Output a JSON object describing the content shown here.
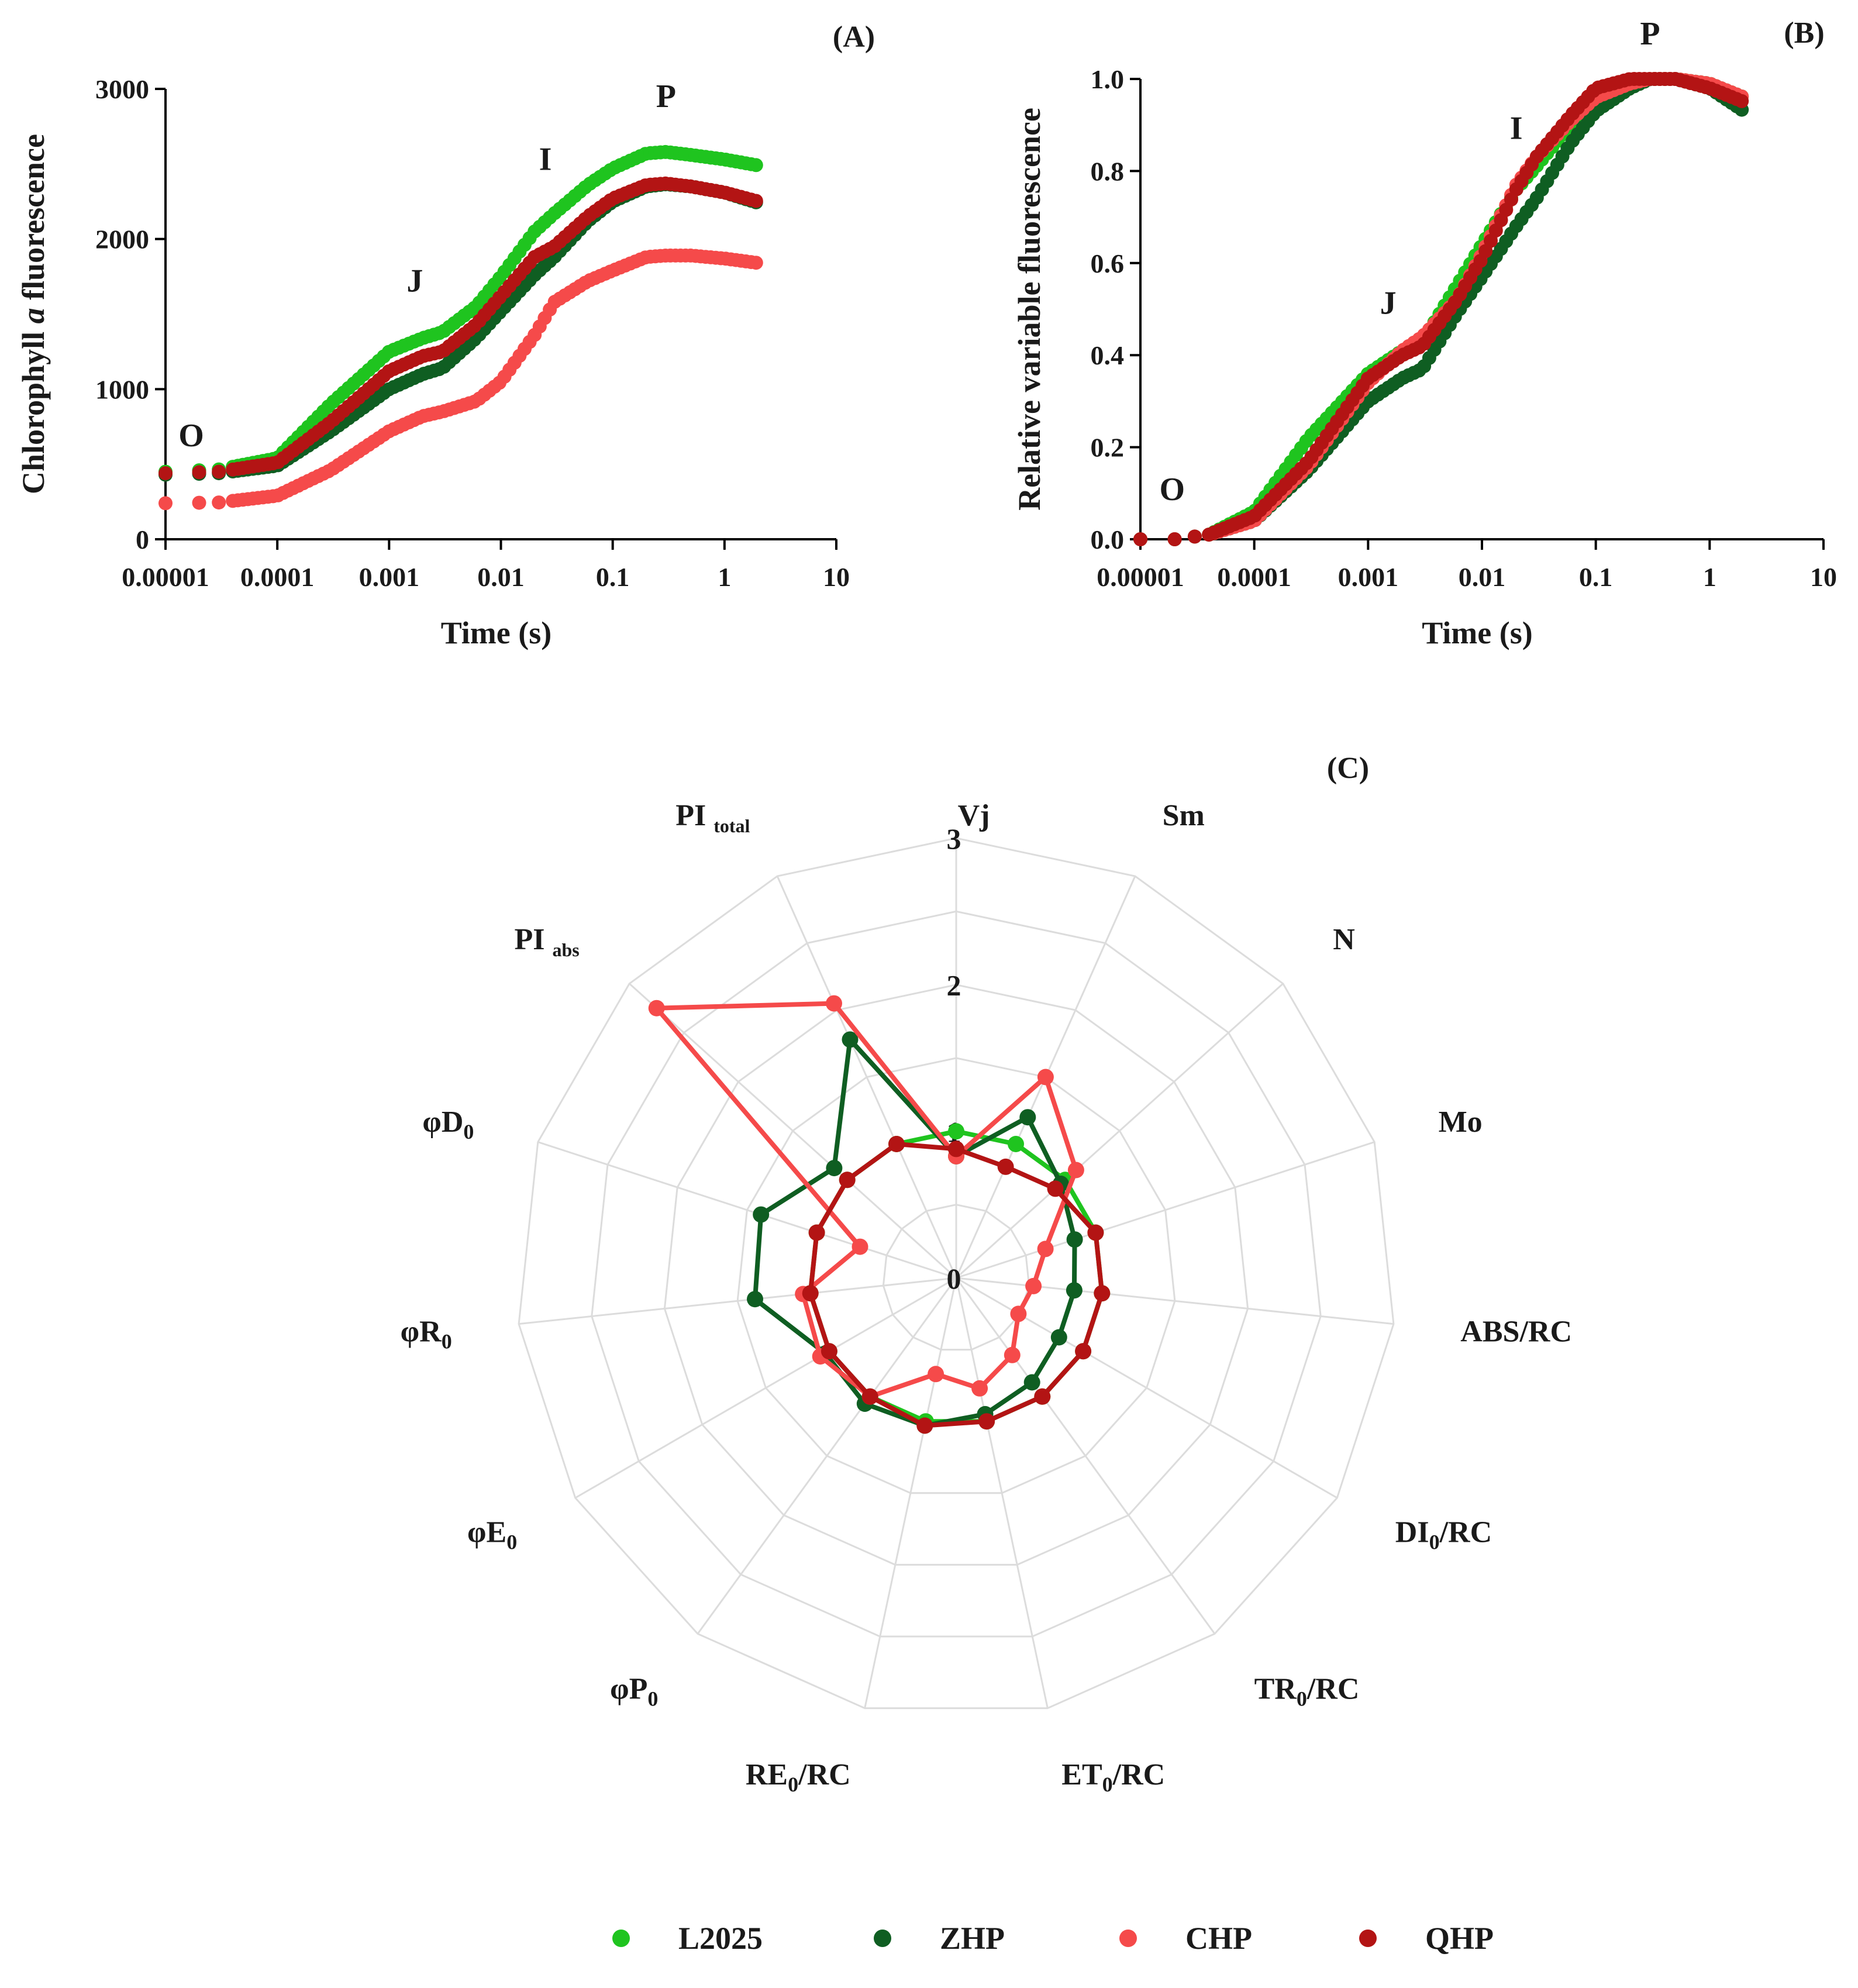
{
  "series": [
    {
      "key": "L2025",
      "name": "L2025",
      "color": "#1fc41f"
    },
    {
      "key": "ZHP",
      "name": "ZHP",
      "color": "#0f5e22"
    },
    {
      "key": "CHP",
      "name": "CHP",
      "color": "#f54a4a"
    },
    {
      "key": "QHP",
      "name": "QHP",
      "color": "#b31414"
    }
  ],
  "chart_data": [
    {
      "id": "A",
      "type": "scatter",
      "panel_label": "(A)",
      "xlabel": "Time (s)",
      "ylabel": {
        "pre": "Chlorophyll ",
        "italic": "a",
        "post": " fluorescence"
      },
      "xscale": "log",
      "xlim": [
        1e-05,
        10
      ],
      "ylim": [
        0,
        3000
      ],
      "xticks": [
        {
          "v": 1e-05,
          "label": "0.00001"
        },
        {
          "v": 0.0001,
          "label": "0.0001"
        },
        {
          "v": 0.001,
          "label": "0.001"
        },
        {
          "v": 0.01,
          "label": "0.01"
        },
        {
          "v": 0.1,
          "label": "0.1"
        },
        {
          "v": 1,
          "label": "1"
        },
        {
          "v": 10,
          "label": "10"
        }
      ],
      "yticks": [
        {
          "v": 0,
          "label": "0"
        },
        {
          "v": 1000,
          "label": "1000"
        },
        {
          "v": 2000,
          "label": "2000"
        },
        {
          "v": 3000,
          "label": "3000"
        }
      ],
      "annotations": [
        {
          "text": "O",
          "x": 1.7e-05,
          "y": 620
        },
        {
          "text": "J",
          "x": 0.0017,
          "y": 1650
        },
        {
          "text": "I",
          "x": 0.025,
          "y": 2460
        },
        {
          "text": "P",
          "x": 0.3,
          "y": 2880
        }
      ],
      "anchor_times": [
        1e-05,
        3e-05,
        0.0001,
        0.0003,
        0.001,
        0.002,
        0.003,
        0.006,
        0.01,
        0.02,
        0.03,
        0.06,
        0.1,
        0.2,
        0.3,
        0.5,
        1,
        2
      ],
      "series": [
        {
          "name": "L2025",
          "values": [
            450,
            465,
            540,
            900,
            1250,
            1340,
            1380,
            1550,
            1750,
            2050,
            2170,
            2360,
            2470,
            2570,
            2580,
            2560,
            2530,
            2490
          ]
        },
        {
          "name": "ZHP",
          "values": [
            430,
            440,
            490,
            720,
            1000,
            1100,
            1140,
            1340,
            1520,
            1760,
            1880,
            2120,
            2250,
            2350,
            2365,
            2350,
            2310,
            2240
          ]
        },
        {
          "name": "CHP",
          "values": [
            240,
            245,
            290,
            460,
            720,
            820,
            850,
            920,
            1050,
            1360,
            1580,
            1720,
            1790,
            1880,
            1890,
            1890,
            1870,
            1840
          ]
        },
        {
          "name": "QHP",
          "values": [
            440,
            450,
            510,
            780,
            1120,
            1220,
            1250,
            1430,
            1620,
            1880,
            1950,
            2150,
            2270,
            2360,
            2370,
            2350,
            2310,
            2250
          ]
        }
      ]
    },
    {
      "id": "B",
      "type": "scatter",
      "panel_label": "(B)",
      "xlabel": "Time (s)",
      "ylabel": {
        "pre": "Relative variable fluorescence",
        "italic": "",
        "post": ""
      },
      "xscale": "log",
      "xlim": [
        1e-05,
        10
      ],
      "ylim": [
        0,
        1.0
      ],
      "xticks": [
        {
          "v": 1e-05,
          "label": "0.00001"
        },
        {
          "v": 0.0001,
          "label": "0.0001"
        },
        {
          "v": 0.001,
          "label": "0.001"
        },
        {
          "v": 0.01,
          "label": "0.01"
        },
        {
          "v": 0.1,
          "label": "0.1"
        },
        {
          "v": 1,
          "label": "1"
        },
        {
          "v": 10,
          "label": "10"
        }
      ],
      "yticks": [
        {
          "v": 0,
          "label": "0.0"
        },
        {
          "v": 0.2,
          "label": "0.2"
        },
        {
          "v": 0.4,
          "label": "0.4"
        },
        {
          "v": 0.6,
          "label": "0.6"
        },
        {
          "v": 0.8,
          "label": "0.8"
        },
        {
          "v": 1.0,
          "label": "1.0"
        }
      ],
      "annotations": [
        {
          "text": "O",
          "x": 1.9e-05,
          "y": 0.085
        },
        {
          "text": "J",
          "x": 0.0015,
          "y": 0.49
        },
        {
          "text": "I",
          "x": 0.02,
          "y": 0.87
        },
        {
          "text": "P",
          "x": 0.3,
          "y": 1.075
        }
      ],
      "anchor_times": [
        1e-05,
        2e-05,
        4e-05,
        0.0001,
        0.0003,
        0.001,
        0.002,
        0.003,
        0.006,
        0.01,
        0.02,
        0.03,
        0.06,
        0.1,
        0.2,
        0.3,
        0.5,
        1,
        2
      ],
      "series": [
        {
          "name": "L2025",
          "values": [
            0.0,
            0.0,
            0.01,
            0.06,
            0.22,
            0.36,
            0.41,
            0.43,
            0.55,
            0.64,
            0.76,
            0.81,
            0.9,
            0.95,
            0.99,
            1.0,
            1.0,
            0.99,
            0.96
          ]
        },
        {
          "name": "ZHP",
          "values": [
            0.0,
            0.0,
            0.01,
            0.04,
            0.15,
            0.3,
            0.35,
            0.37,
            0.49,
            0.57,
            0.68,
            0.74,
            0.86,
            0.93,
            0.98,
            1.0,
            1.0,
            0.98,
            0.93
          ]
        },
        {
          "name": "CHP",
          "values": [
            0.0,
            0.0,
            0.01,
            0.04,
            0.16,
            0.34,
            0.41,
            0.44,
            0.52,
            0.62,
            0.77,
            0.83,
            0.91,
            0.96,
            0.99,
            1.0,
            1.0,
            0.99,
            0.96
          ]
        },
        {
          "name": "QHP",
          "values": [
            0.0,
            0.0,
            0.01,
            0.05,
            0.17,
            0.35,
            0.4,
            0.42,
            0.52,
            0.61,
            0.76,
            0.83,
            0.92,
            0.98,
            1.0,
            1.0,
            1.0,
            0.98,
            0.95
          ]
        }
      ]
    },
    {
      "id": "C",
      "type": "radar",
      "panel_label": "(C)",
      "rmax": 3,
      "rings": [
        0.5,
        1,
        1.5,
        2,
        2.5,
        3
      ],
      "ring_labels": [
        {
          "v": 0,
          "label": "0"
        },
        {
          "v": 1,
          "label": "1"
        },
        {
          "v": 2,
          "label": "2"
        },
        {
          "v": 3,
          "label": "3"
        }
      ],
      "axes": [
        {
          "label": "Vj",
          "sub": ""
        },
        {
          "label": "Sm",
          "sub": ""
        },
        {
          "label": "N",
          "sub": ""
        },
        {
          "label": "Mo",
          "sub": ""
        },
        {
          "label": "ABS/RC",
          "sub": ""
        },
        {
          "label": "DI",
          "sub": "0",
          "post": "/RC"
        },
        {
          "label": "TR",
          "sub": "0",
          "post": "/RC"
        },
        {
          "label": "ET",
          "sub": "0",
          "post": "/RC"
        },
        {
          "label": "RE",
          "sub": "0",
          "post": "/RC"
        },
        {
          "label": "φP",
          "sub": "0"
        },
        {
          "label": "φE",
          "sub": "0"
        },
        {
          "label": "φR",
          "sub": "0"
        },
        {
          "label": "φD",
          "sub": "0"
        },
        {
          "label": "PI ",
          "sub": "abs",
          "small": true
        },
        {
          "label": "PI ",
          "sub": "total",
          "small": true
        }
      ],
      "series": [
        {
          "name": "L2025",
          "values": [
            1.0,
            1.0,
            1.0,
            1.0,
            1.0,
            1.0,
            1.0,
            1.0,
            1.0,
            1.0,
            1.0,
            1.0,
            1.0,
            1.0,
            1.0
          ]
        },
        {
          "name": "ZHP",
          "values": [
            0.83,
            1.2,
            0.96,
            0.85,
            0.81,
            0.81,
            0.88,
            0.95,
            1.03,
            1.06,
            1.03,
            1.38,
            1.4,
            1.12,
            1.78
          ]
        },
        {
          "name": "CHP",
          "values": [
            0.83,
            1.5,
            1.1,
            0.64,
            0.53,
            0.49,
            0.65,
            0.77,
            0.67,
            1.0,
            1.07,
            1.05,
            0.69,
            2.75,
            2.05
          ]
        },
        {
          "name": "QHP",
          "values": [
            0.88,
            0.83,
            0.91,
            1.0,
            1.0,
            1.0,
            1.0,
            1.0,
            1.03,
            1.0,
            1.0,
            1.0,
            1.0,
            1.0,
            1.0
          ]
        }
      ]
    }
  ]
}
